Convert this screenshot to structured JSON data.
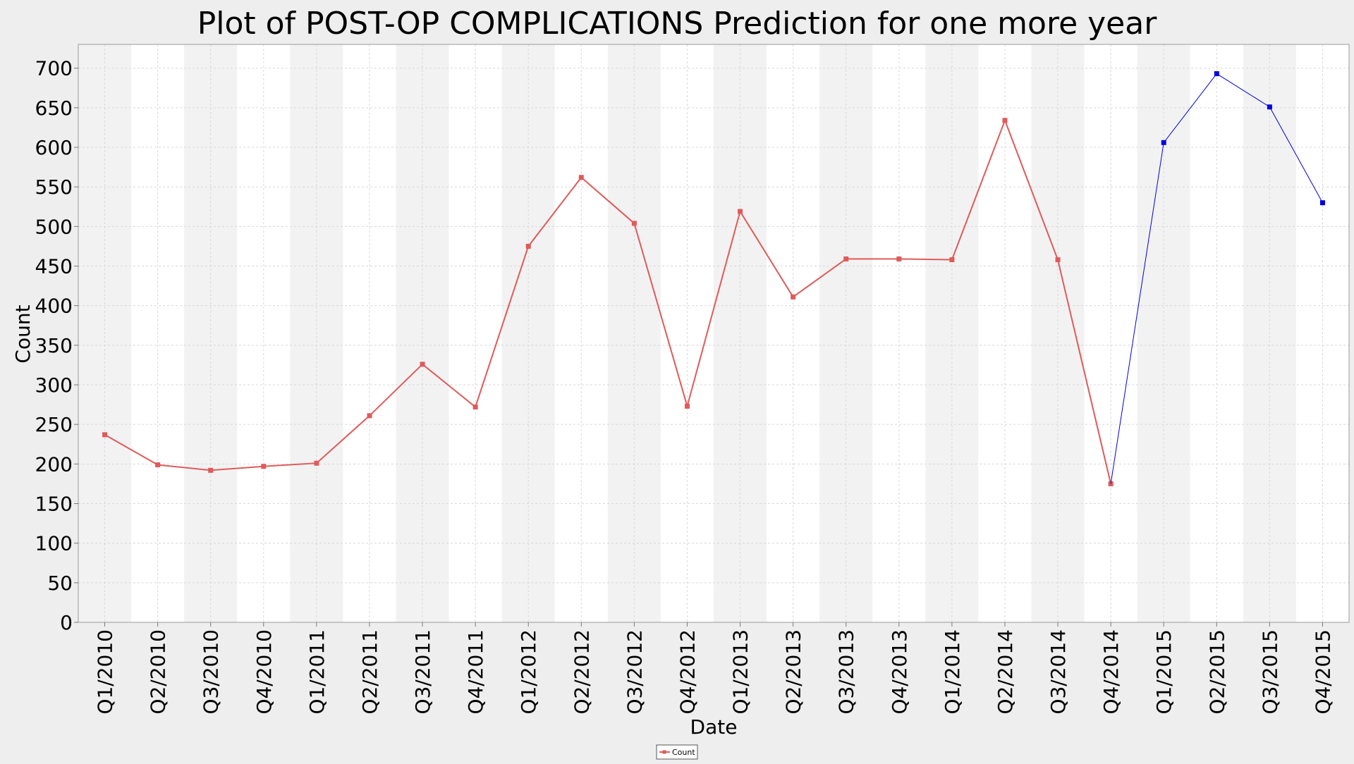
{
  "chart_data": {
    "type": "line",
    "title": "Plot of POST-OP COMPLICATIONS Prediction for one more year",
    "xlabel": "Date",
    "ylabel": "Count",
    "ylim": [
      0,
      730
    ],
    "yticks": [
      0,
      50,
      100,
      150,
      200,
      250,
      300,
      350,
      400,
      450,
      500,
      550,
      600,
      650,
      700
    ],
    "grid": true,
    "alternating_column_bands": true,
    "legend_position": "bottom-center",
    "categories": [
      "Q1/2010",
      "Q2/2010",
      "Q3/2010",
      "Q4/2010",
      "Q1/2011",
      "Q2/2011",
      "Q3/2011",
      "Q4/2011",
      "Q1/2012",
      "Q2/2012",
      "Q3/2012",
      "Q4/2012",
      "Q1/2013",
      "Q2/2013",
      "Q3/2013",
      "Q4/2013",
      "Q1/2014",
      "Q2/2014",
      "Q3/2014",
      "Q4/2014",
      "Q1/2015",
      "Q2/2015",
      "Q3/2015",
      "Q4/2015"
    ],
    "series": [
      {
        "name": "Count",
        "color": "#e05a5a",
        "values": [
          237,
          199,
          192,
          197,
          201,
          261,
          326,
          272,
          475,
          562,
          504,
          273,
          519,
          411,
          459,
          459,
          458,
          634,
          458,
          175,
          null,
          null,
          null,
          null
        ]
      },
      {
        "color": "#0000dd",
        "values": [
          null,
          null,
          null,
          null,
          null,
          null,
          null,
          null,
          null,
          null,
          null,
          null,
          null,
          null,
          null,
          null,
          null,
          null,
          null,
          175,
          606,
          693,
          651,
          530
        ]
      }
    ],
    "legend": [
      {
        "label": "Count",
        "color": "#e05a5a"
      }
    ]
  }
}
